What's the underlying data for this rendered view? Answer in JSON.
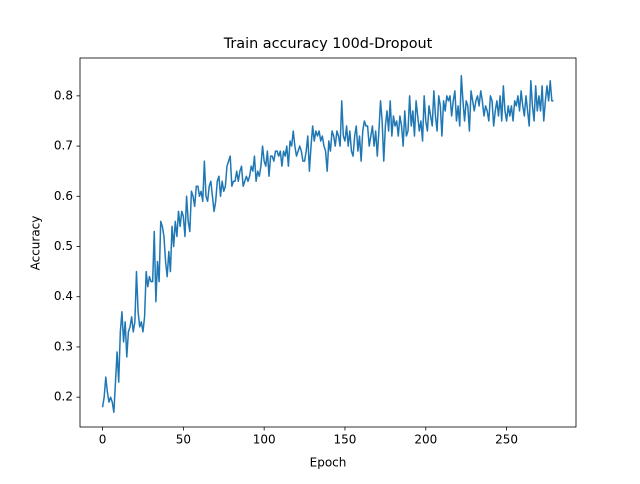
{
  "chart_data": {
    "type": "line",
    "title": "Train accuracy 100d-Dropout",
    "xlabel": "Epoch",
    "ylabel": "Accuracy",
    "x": [
      0,
      1,
      2,
      3,
      4,
      5,
      6,
      7,
      8,
      9,
      10,
      11,
      12,
      13,
      14,
      15,
      16,
      17,
      18,
      19,
      20,
      21,
      22,
      23,
      24,
      25,
      26,
      27,
      28,
      29,
      30,
      31,
      32,
      33,
      34,
      35,
      36,
      37,
      38,
      39,
      40,
      41,
      42,
      43,
      44,
      45,
      46,
      47,
      48,
      49,
      50,
      51,
      52,
      53,
      54,
      55,
      56,
      57,
      58,
      59,
      60,
      61,
      62,
      63,
      64,
      65,
      66,
      67,
      68,
      69,
      70,
      71,
      72,
      73,
      74,
      75,
      76,
      77,
      78,
      79,
      80,
      81,
      82,
      83,
      84,
      85,
      86,
      87,
      88,
      89,
      90,
      91,
      92,
      93,
      94,
      95,
      96,
      97,
      98,
      99,
      100,
      101,
      102,
      103,
      104,
      105,
      106,
      107,
      108,
      109,
      110,
      111,
      112,
      113,
      114,
      115,
      116,
      117,
      118,
      119,
      120,
      121,
      122,
      123,
      124,
      125,
      126,
      127,
      128,
      129,
      130,
      131,
      132,
      133,
      134,
      135,
      136,
      137,
      138,
      139,
      140,
      141,
      142,
      143,
      144,
      145,
      146,
      147,
      148,
      149,
      150,
      151,
      152,
      153,
      154,
      155,
      156,
      157,
      158,
      159,
      160,
      161,
      162,
      163,
      164,
      165,
      166,
      167,
      168,
      169,
      170,
      171,
      172,
      173,
      174,
      175,
      176,
      177,
      178,
      179,
      180,
      181,
      182,
      183,
      184,
      185,
      186,
      187,
      188,
      189,
      190,
      191,
      192,
      193,
      194,
      195,
      196,
      197,
      198,
      199,
      200,
      201,
      202,
      203,
      204,
      205,
      206,
      207,
      208,
      209,
      210,
      211,
      212,
      213,
      214,
      215,
      216,
      217,
      218,
      219,
      220,
      221,
      222,
      223,
      224,
      225,
      226,
      227,
      228,
      229,
      230,
      231,
      232,
      233,
      234,
      235,
      236,
      237,
      238,
      239,
      240,
      241,
      242,
      243,
      244,
      245,
      246,
      247,
      248,
      249,
      250,
      251,
      252,
      253,
      254,
      255,
      256,
      257,
      258,
      259,
      260,
      261,
      262,
      263,
      264,
      265,
      266,
      267,
      268,
      269,
      270,
      271,
      272,
      273,
      274,
      275,
      276,
      277,
      278,
      279
    ],
    "series": [
      {
        "color": "#1f77b4",
        "values": [
          0.18,
          0.2,
          0.24,
          0.21,
          0.19,
          0.2,
          0.19,
          0.17,
          0.23,
          0.29,
          0.23,
          0.33,
          0.37,
          0.31,
          0.35,
          0.28,
          0.33,
          0.34,
          0.36,
          0.33,
          0.35,
          0.45,
          0.37,
          0.34,
          0.35,
          0.33,
          0.36,
          0.45,
          0.42,
          0.44,
          0.43,
          0.43,
          0.53,
          0.39,
          0.47,
          0.43,
          0.55,
          0.54,
          0.52,
          0.47,
          0.44,
          0.49,
          0.45,
          0.54,
          0.5,
          0.55,
          0.52,
          0.57,
          0.54,
          0.57,
          0.56,
          0.52,
          0.6,
          0.55,
          0.53,
          0.61,
          0.6,
          0.58,
          0.62,
          0.62,
          0.6,
          0.61,
          0.59,
          0.67,
          0.6,
          0.59,
          0.62,
          0.63,
          0.6,
          0.57,
          0.59,
          0.63,
          0.64,
          0.6,
          0.63,
          0.61,
          0.62,
          0.66,
          0.67,
          0.68,
          0.62,
          0.63,
          0.63,
          0.65,
          0.63,
          0.65,
          0.66,
          0.62,
          0.63,
          0.64,
          0.63,
          0.64,
          0.66,
          0.65,
          0.68,
          0.63,
          0.65,
          0.64,
          0.66,
          0.7,
          0.67,
          0.66,
          0.69,
          0.64,
          0.68,
          0.68,
          0.67,
          0.69,
          0.69,
          0.68,
          0.69,
          0.66,
          0.69,
          0.68,
          0.7,
          0.66,
          0.71,
          0.7,
          0.73,
          0.7,
          0.68,
          0.69,
          0.7,
          0.69,
          0.67,
          0.67,
          0.69,
          0.72,
          0.65,
          0.7,
          0.74,
          0.71,
          0.73,
          0.72,
          0.73,
          0.71,
          0.72,
          0.7,
          0.69,
          0.65,
          0.71,
          0.69,
          0.73,
          0.72,
          0.7,
          0.73,
          0.72,
          0.7,
          0.79,
          0.72,
          0.71,
          0.74,
          0.7,
          0.73,
          0.69,
          0.68,
          0.72,
          0.74,
          0.69,
          0.72,
          0.67,
          0.73,
          0.75,
          0.74,
          0.74,
          0.7,
          0.72,
          0.74,
          0.7,
          0.73,
          0.68,
          0.73,
          0.79,
          0.75,
          0.67,
          0.74,
          0.77,
          0.73,
          0.79,
          0.72,
          0.76,
          0.74,
          0.75,
          0.72,
          0.76,
          0.74,
          0.7,
          0.77,
          0.72,
          0.73,
          0.8,
          0.74,
          0.77,
          0.72,
          0.79,
          0.76,
          0.73,
          0.75,
          0.71,
          0.8,
          0.75,
          0.73,
          0.78,
          0.76,
          0.74,
          0.81,
          0.76,
          0.73,
          0.8,
          0.78,
          0.72,
          0.79,
          0.77,
          0.8,
          0.79,
          0.8,
          0.76,
          0.79,
          0.81,
          0.75,
          0.78,
          0.74,
          0.84,
          0.79,
          0.75,
          0.79,
          0.78,
          0.73,
          0.81,
          0.79,
          0.77,
          0.79,
          0.8,
          0.78,
          0.81,
          0.79,
          0.76,
          0.78,
          0.77,
          0.75,
          0.8,
          0.79,
          0.74,
          0.77,
          0.79,
          0.76,
          0.8,
          0.75,
          0.82,
          0.77,
          0.75,
          0.78,
          0.76,
          0.78,
          0.75,
          0.79,
          0.78,
          0.8,
          0.77,
          0.81,
          0.78,
          0.76,
          0.8,
          0.77,
          0.74,
          0.83,
          0.78,
          0.75,
          0.82,
          0.77,
          0.8,
          0.77,
          0.82,
          0.75,
          0.79,
          0.82,
          0.79,
          0.83,
          0.79,
          0.79
        ]
      }
    ],
    "xlim": [
      -13.95,
      292.95
    ],
    "ylim": [
      0.1406,
      0.8754
    ],
    "xticks": [
      0,
      50,
      100,
      150,
      200,
      250
    ],
    "yticks": [
      0.2,
      0.3,
      0.4,
      0.5,
      0.6,
      0.7,
      0.8
    ]
  }
}
